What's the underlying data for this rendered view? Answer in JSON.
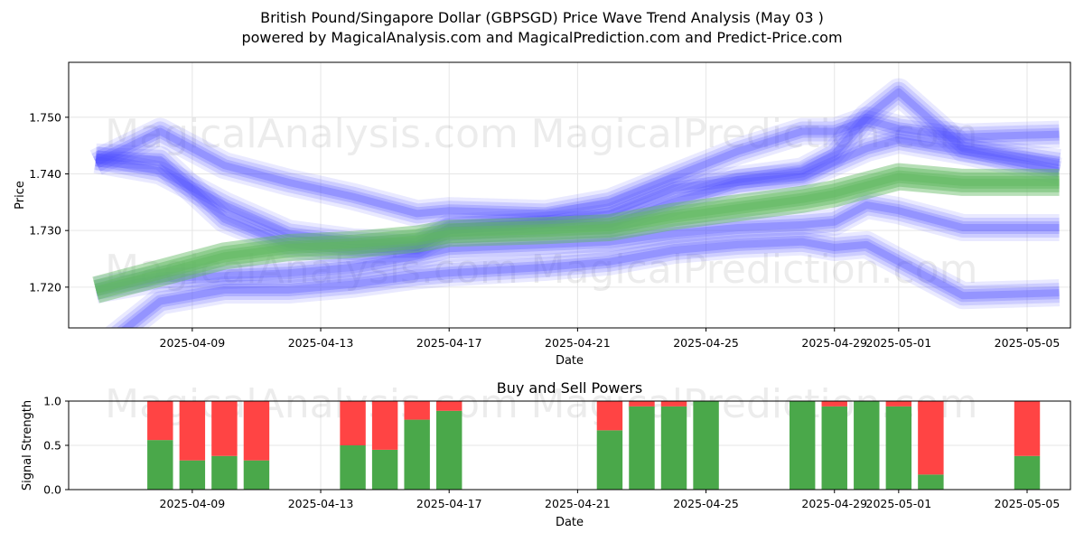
{
  "header": {
    "title": "British Pound/Singapore Dollar (GBPSGD) Price Wave Trend Analysis (May 03 )",
    "subtitle": "powered by MagicalAnalysis.com and MagicalPrediction.com and Predict-Price.com"
  },
  "watermarks": [
    "MagicalAnalysis.com",
    "MagicalPrediction.com"
  ],
  "colors": {
    "wave_blue": "#4a4aff",
    "wave_green": "#5fb85f",
    "buy": "#4aa84a",
    "sell": "#ff4444",
    "grid": "#e6e6e6"
  },
  "chart_data": [
    {
      "type": "area",
      "title": "",
      "xlabel": "Date",
      "ylabel": "Price",
      "x_ticks": [
        "2025-04-09",
        "2025-04-13",
        "2025-04-17",
        "2025-04-21",
        "2025-04-25",
        "2025-04-29",
        "2025-05-01",
        "2025-05-05"
      ],
      "y_ticks": [
        "1.720",
        "1.730",
        "1.740",
        "1.750"
      ],
      "xlim": [
        "2025-04-05",
        "2025-05-06"
      ],
      "ylim": [
        1.7128,
        1.7597
      ],
      "grid": true,
      "x": [
        "2025-04-06",
        "2025-04-08",
        "2025-04-10",
        "2025-04-12",
        "2025-04-14",
        "2025-04-16",
        "2025-04-17",
        "2025-04-20",
        "2025-04-22",
        "2025-04-24",
        "2025-04-26",
        "2025-04-28",
        "2025-04-29",
        "2025-04-30",
        "2025-05-01",
        "2025-05-03",
        "2025-05-06"
      ],
      "series": [
        {
          "color": "blue",
          "values": [
            1.7425,
            1.7405,
            1.7345,
            1.7295,
            1.728,
            1.7275,
            1.7305,
            1.7315,
            1.733,
            1.7375,
            1.739,
            1.7405,
            1.7435,
            1.75,
            1.7545,
            1.7445,
            1.742
          ]
        },
        {
          "color": "blue",
          "values": [
            1.743,
            1.7425,
            1.732,
            1.7275,
            1.7265,
            1.727,
            1.73,
            1.731,
            1.731,
            1.735,
            1.7385,
            1.7395,
            1.742,
            1.7445,
            1.746,
            1.744,
            1.7405
          ]
        },
        {
          "color": "blue",
          "values": [
            1.742,
            1.7475,
            1.7415,
            1.7385,
            1.736,
            1.733,
            1.7335,
            1.733,
            1.735,
            1.7395,
            1.744,
            1.7475,
            1.7475,
            1.7495,
            1.748,
            1.7465,
            1.747
          ]
        },
        {
          "color": "blue",
          "values": [
            1.7195,
            1.7215,
            1.722,
            1.7225,
            1.7235,
            1.7255,
            1.7268,
            1.7275,
            1.728,
            1.7295,
            1.7305,
            1.731,
            1.7315,
            1.7345,
            1.7335,
            1.7305,
            1.7305
          ]
        },
        {
          "color": "blue",
          "values": [
            1.7085,
            1.7175,
            1.7195,
            1.7195,
            1.7205,
            1.722,
            1.7225,
            1.7235,
            1.7245,
            1.7265,
            1.7275,
            1.728,
            1.727,
            1.7275,
            1.7245,
            1.7185,
            1.719
          ]
        },
        {
          "color": "green",
          "values": [
            1.7195,
            1.7225,
            1.7255,
            1.727,
            1.7275,
            1.7285,
            1.7295,
            1.73,
            1.7305,
            1.7325,
            1.734,
            1.7355,
            1.7365,
            1.738,
            1.7395,
            1.7385,
            1.7385
          ]
        }
      ]
    },
    {
      "type": "bar",
      "title": "Buy and Sell Powers",
      "xlabel": "Date",
      "ylabel": "Signal Strength",
      "x_ticks": [
        "2025-04-09",
        "2025-04-13",
        "2025-04-17",
        "2025-04-21",
        "2025-04-25",
        "2025-04-29",
        "2025-05-01",
        "2025-05-05"
      ],
      "y_ticks": [
        "0.0",
        "0.5",
        "1.0"
      ],
      "xlim": [
        "2025-04-05",
        "2025-05-06"
      ],
      "ylim": [
        0,
        1
      ],
      "grid": true,
      "categories": [
        "2025-04-08",
        "2025-04-09",
        "2025-04-10",
        "2025-04-11",
        "2025-04-14",
        "2025-04-15",
        "2025-04-16",
        "2025-04-17",
        "2025-04-22",
        "2025-04-23",
        "2025-04-24",
        "2025-04-25",
        "2025-04-28",
        "2025-04-29",
        "2025-04-30",
        "2025-05-01",
        "2025-05-02",
        "2025-05-05"
      ],
      "series": [
        {
          "name": "Buy",
          "values": [
            0.56,
            0.33,
            0.38,
            0.33,
            0.5,
            0.45,
            0.79,
            0.89,
            0.67,
            0.94,
            0.94,
            1.0,
            1.0,
            0.94,
            1.0,
            0.94,
            0.17,
            0.38
          ]
        },
        {
          "name": "Sell",
          "values": [
            0.44,
            0.67,
            0.62,
            0.67,
            0.5,
            0.55,
            0.21,
            0.11,
            0.33,
            0.06,
            0.06,
            0.0,
            0.0,
            0.06,
            0.0,
            0.06,
            0.83,
            0.62
          ]
        }
      ]
    }
  ]
}
